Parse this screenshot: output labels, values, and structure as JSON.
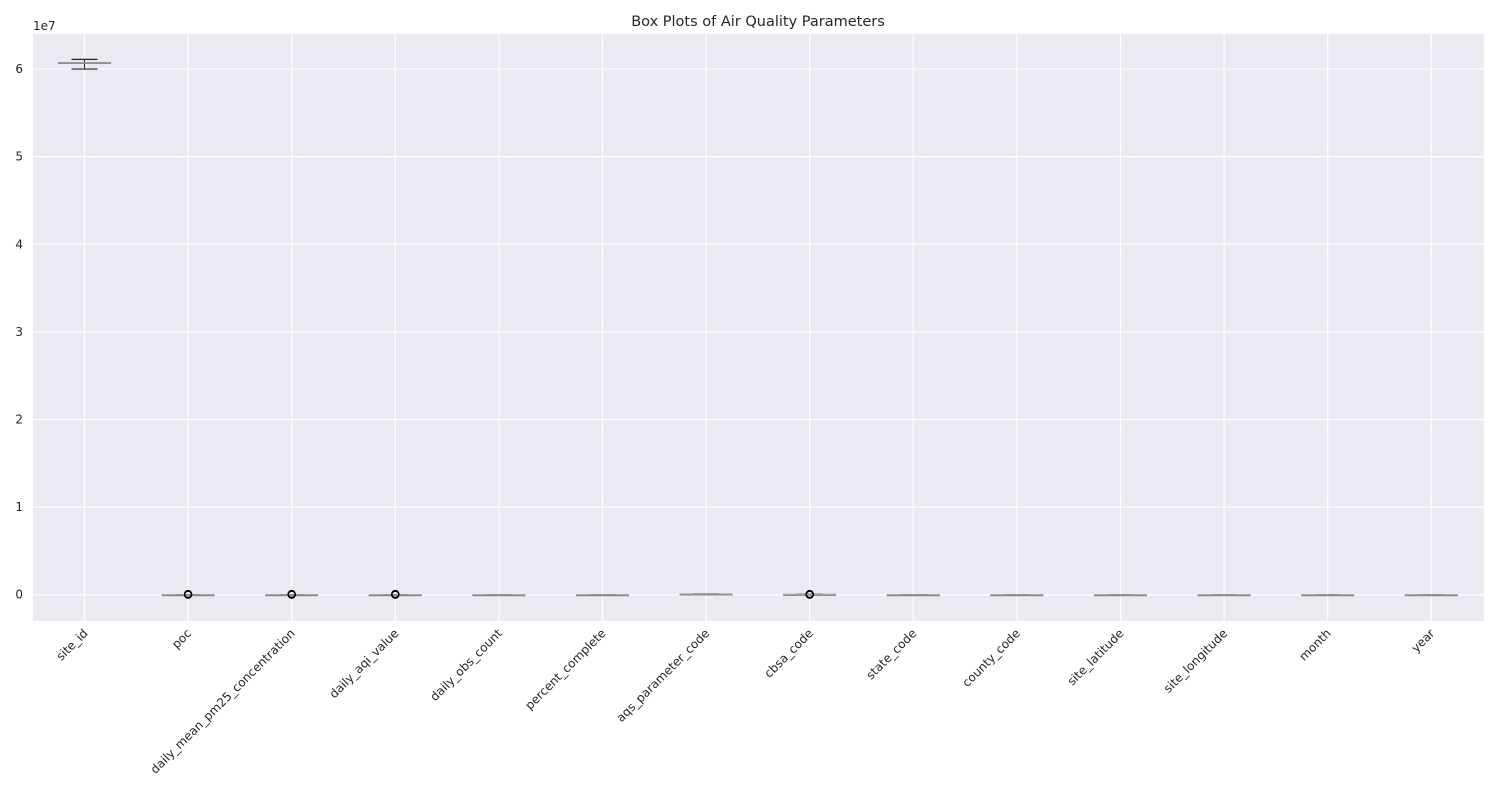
{
  "chart_data": {
    "type": "box",
    "title": "Box Plots of Air Quality Parameters",
    "xlabel": "",
    "ylabel": "",
    "y_scale_label": "1e7",
    "y_scale": 10000000,
    "ylim": [
      -3000000,
      64000000
    ],
    "yticks": [
      0,
      10000000,
      20000000,
      30000000,
      40000000,
      50000000,
      60000000
    ],
    "ytick_labels": [
      "0",
      "1",
      "2",
      "3",
      "4",
      "5",
      "6"
    ],
    "grid": true,
    "background": "#eaeaf2",
    "box_color": "#7f7f7f",
    "cap_color": "#262626",
    "outlier_color": "#000000",
    "categories": [
      "site_id",
      "poc",
      "daily_mean_pm25_concentration",
      "daily_aqi_value",
      "daily_obs_count",
      "percent_complete",
      "aqs_parameter_code",
      "cbsa_code",
      "state_code",
      "county_code",
      "site_latitude",
      "site_longitude",
      "month",
      "year"
    ],
    "boxes": [
      {
        "label": "site_id",
        "whislo": 60000000,
        "q1": 60650000,
        "med": 60700000,
        "q3": 60750000,
        "whishi": 61100000,
        "fliers": []
      },
      {
        "label": "poc",
        "whislo": 1,
        "q1": 1,
        "med": 3,
        "q3": 4,
        "whishi": 4,
        "fliers": [
          0,
          20000,
          40000,
          60000,
          80000
        ]
      },
      {
        "label": "daily_mean_pm25_concentration",
        "whislo": 0,
        "q1": 5,
        "med": 8,
        "q3": 12,
        "whishi": 20,
        "fliers": [
          0,
          20000,
          40000,
          60000,
          80000
        ]
      },
      {
        "label": "daily_aqi_value",
        "whislo": 0,
        "q1": 20,
        "med": 35,
        "q3": 50,
        "whishi": 90,
        "fliers": [
          0,
          20000,
          40000,
          60000,
          80000
        ]
      },
      {
        "label": "daily_obs_count",
        "whislo": 1,
        "q1": 1,
        "med": 1,
        "q3": 1,
        "whishi": 1,
        "fliers": []
      },
      {
        "label": "percent_complete",
        "whislo": 100,
        "q1": 100,
        "med": 100,
        "q3": 100,
        "whishi": 100,
        "fliers": []
      },
      {
        "label": "aqs_parameter_code",
        "whislo": 88101,
        "q1": 88101,
        "med": 88101,
        "q3": 88502,
        "whishi": 88502,
        "fliers": []
      },
      {
        "label": "cbsa_code",
        "whislo": 12540,
        "q1": 31080,
        "med": 40140,
        "q3": 41860,
        "whishi": 49700,
        "fliers": [
          0,
          20000,
          40000,
          60000,
          80000
        ]
      },
      {
        "label": "state_code",
        "whislo": 6,
        "q1": 6,
        "med": 6,
        "q3": 6,
        "whishi": 6,
        "fliers": []
      },
      {
        "label": "county_code",
        "whislo": 1,
        "q1": 37,
        "med": 65,
        "q3": 83,
        "whishi": 115,
        "fliers": []
      },
      {
        "label": "site_latitude",
        "whislo": 32,
        "q1": 34,
        "med": 36,
        "q3": 38,
        "whishi": 41,
        "fliers": []
      },
      {
        "label": "site_longitude",
        "whislo": -124,
        "q1": -121,
        "med": -119,
        "q3": -118,
        "whishi": -115,
        "fliers": []
      },
      {
        "label": "month",
        "whislo": 1,
        "q1": 4,
        "med": 7,
        "q3": 10,
        "whishi": 12,
        "fliers": []
      },
      {
        "label": "year",
        "whislo": 2020,
        "q1": 2020,
        "med": 2021,
        "q3": 2022,
        "whishi": 2023,
        "fliers": []
      }
    ]
  }
}
